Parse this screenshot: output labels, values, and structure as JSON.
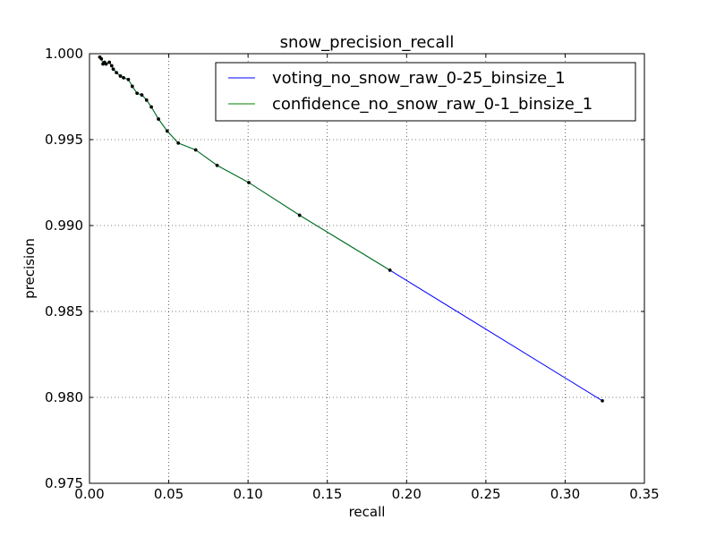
{
  "chart_data": {
    "type": "line",
    "title": "snow_precision_recall",
    "xlabel": "recall",
    "ylabel": "precision",
    "xlim": [
      0.0,
      0.35
    ],
    "ylim": [
      0.975,
      1.0
    ],
    "xticks": [
      "0.00",
      "0.05",
      "0.10",
      "0.15",
      "0.20",
      "0.25",
      "0.30",
      "0.35"
    ],
    "yticks": [
      "0.975",
      "0.980",
      "0.985",
      "0.990",
      "0.995",
      "1.000"
    ],
    "grid": true,
    "legend_position": "top-right",
    "series": [
      {
        "name": "voting_no_snow_raw_0-25_binsize_1",
        "color": "#0000ff",
        "x": [
          0.0065,
          0.0075,
          0.0085,
          0.0095,
          0.0105,
          0.0125,
          0.014,
          0.015,
          0.017,
          0.0195,
          0.0215,
          0.0245,
          0.027,
          0.03,
          0.033,
          0.036,
          0.039,
          0.0435,
          0.049,
          0.056,
          0.067,
          0.0805,
          0.1005,
          0.1325,
          0.1895,
          0.3235
        ],
        "y": [
          0.9998,
          0.9997,
          0.9994,
          0.9995,
          0.9994,
          0.9995,
          0.9993,
          0.9991,
          0.9989,
          0.9987,
          0.9986,
          0.9985,
          0.9981,
          0.9977,
          0.9976,
          0.9973,
          0.9969,
          0.9962,
          0.9955,
          0.9948,
          0.9944,
          0.9935,
          0.9925,
          0.9906,
          0.9874,
          0.9798
        ]
      },
      {
        "name": "confidence_no_snow_raw_0-1_binsize_1",
        "color": "#008000",
        "x": [
          0.0065,
          0.0075,
          0.0085,
          0.0095,
          0.0105,
          0.0125,
          0.014,
          0.015,
          0.017,
          0.0195,
          0.0215,
          0.0245,
          0.027,
          0.03,
          0.033,
          0.036,
          0.039,
          0.0435,
          0.049,
          0.056,
          0.067,
          0.0805,
          0.1005,
          0.1325,
          0.1895
        ],
        "y": [
          0.9998,
          0.9997,
          0.9994,
          0.9995,
          0.9994,
          0.9995,
          0.9993,
          0.9991,
          0.9989,
          0.9987,
          0.9986,
          0.9985,
          0.9981,
          0.9977,
          0.9976,
          0.9973,
          0.9969,
          0.9962,
          0.9955,
          0.9948,
          0.9944,
          0.9935,
          0.9925,
          0.9906,
          0.9874
        ]
      }
    ]
  }
}
